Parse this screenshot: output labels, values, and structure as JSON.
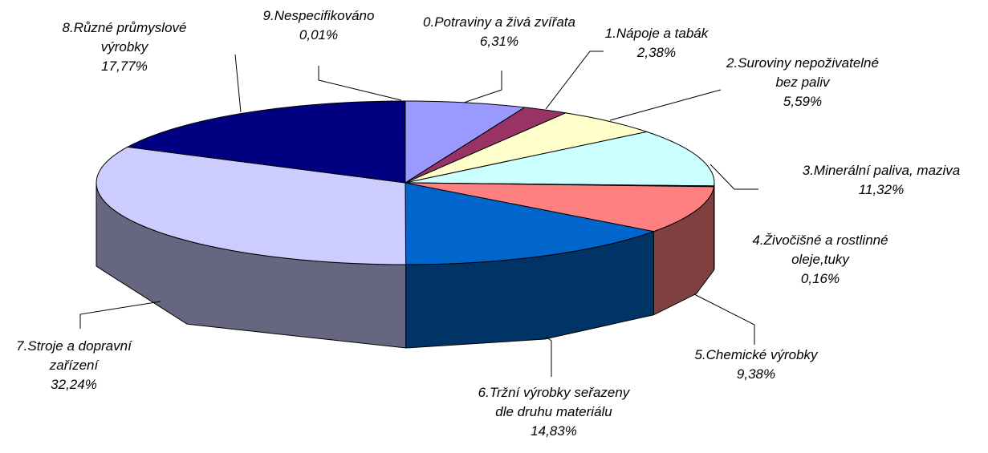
{
  "chart_data": {
    "type": "pie3d",
    "categories": [
      "0.Potraviny a živá zvířata",
      "1.Nápoje a tabák",
      "2.Suroviny nepoživatelné\nbez paliv",
      "3.Minerální paliva, maziva",
      "4.Živočišné a rostlinné\noleje,tuky",
      "5.Chemické výrobky",
      "6.Tržní výrobky seřazeny\ndle druhu materiálu",
      "7.Stroje a dopravní\nzařízení",
      "8.Různé průmyslové\nvýrobky",
      "9.Nespecifikováno"
    ],
    "values": [
      6.31,
      2.38,
      5.59,
      11.32,
      0.16,
      9.38,
      14.83,
      32.24,
      17.77,
      0.01
    ],
    "value_labels": [
      "6,31%",
      "2,38%",
      "5,59%",
      "11,32%",
      "0,16%",
      "9,38%",
      "14,83%",
      "32,24%",
      "17,77%",
      "0,01%"
    ],
    "colors": [
      "#9999ff",
      "#993366",
      "#ffffcc",
      "#ccffff",
      "#ff8080",
      "#ff8080",
      "#0066cc",
      "#ccccff",
      "#000080",
      "#9999ff"
    ]
  }
}
